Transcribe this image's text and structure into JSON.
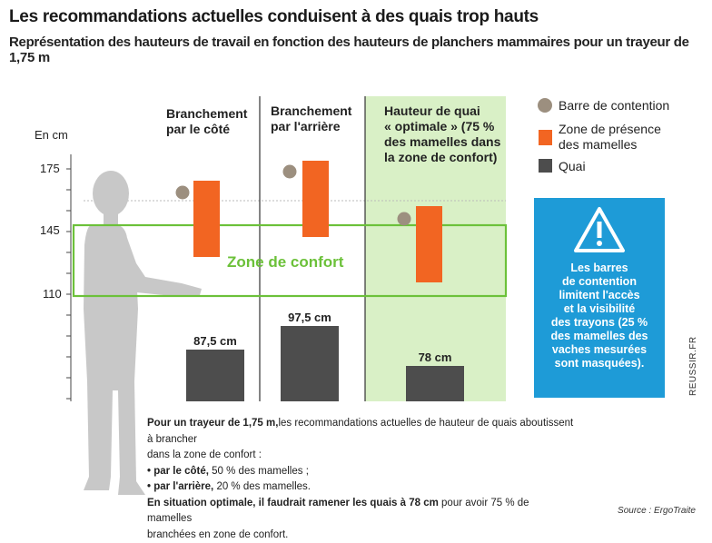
{
  "title": "Les recommandations actuelles conduisent à des quais trop hauts",
  "subtitle": "Représentation des hauteurs de travail en fonction des hauteurs de planchers mammaires pour un trayeur de 1,75 m",
  "axis": {
    "unit_label": "En cm",
    "ticks": [
      "175",
      "145",
      "110"
    ]
  },
  "columns": [
    {
      "line1": "Branchement",
      "line2": "par le côté",
      "quai_label": "87,5 cm"
    },
    {
      "line1": "Branchement",
      "line2": "par l'arrière",
      "quai_label": "97,5 cm"
    },
    {
      "line1": "Hauteur de quai",
      "line2": "« optimale » (75 %",
      "line3": "des mamelles dans",
      "line4": "la zone de confort)",
      "quai_label": "78 cm"
    }
  ],
  "zone_label": "Zone de confort",
  "legend": {
    "bar": "Barre de contention",
    "zone1": "Zone de présence",
    "zone2": "des mamelles",
    "quai": "Quai"
  },
  "warning": {
    "l1": "Les barres",
    "l2": "de contention",
    "l3": "limitent l'accès",
    "l4": "et la visibilité",
    "l5": "des trayons (25 %",
    "l6": "des mamelles des",
    "l7": "vaches mesurées",
    "l8": "sont masquées)."
  },
  "credit": "REUSSIR.FR",
  "note": {
    "p1_bold": "Pour un trayeur de 1,75 m,",
    "p1_rest": "les recommandations actuelles de hauteur de quais aboutissent à brancher",
    "p2": "dans la zone de confort :",
    "b1_bold": "• par le côté,",
    "b1_rest": " 50 % des mamelles ;",
    "b2_bold": "• par l'arrière,",
    "b2_rest": " 20 % des mamelles.",
    "p3_bold": "En situation optimale, il faudrait ramener les quais à 78 cm",
    "p3_rest": " pour avoir 75 % de mamelles",
    "p4": "branchées en zone de confort."
  },
  "source": "Source : ErgoTraite",
  "colors": {
    "orange": "#f26522",
    "green_zone": "#6cc13a",
    "green_bg": "#d9f0c6",
    "quai": "#4d4d4d",
    "bar_dot": "#9c8f7f",
    "warning_blue": "#1e9bd7",
    "silhouette": "#c8c8c8"
  }
}
